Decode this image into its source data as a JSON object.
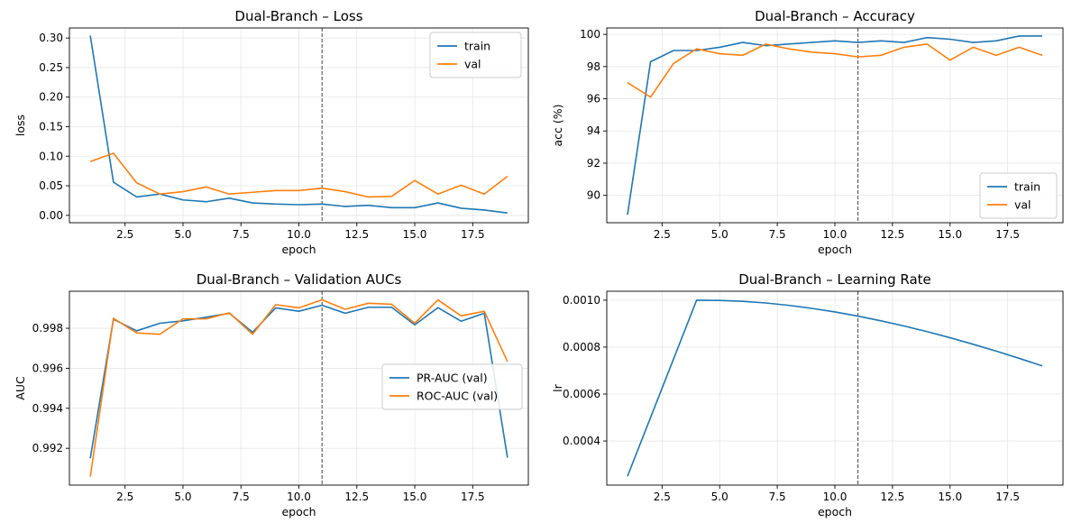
{
  "chart_data": [
    {
      "type": "line",
      "title": "Dual-Branch – Loss",
      "xlabel": "epoch",
      "ylabel": "loss",
      "xlim": [
        0.1,
        19.9
      ],
      "ylim": [
        -0.0125,
        0.317
      ],
      "xticks": [
        2.5,
        5.0,
        7.5,
        10.0,
        12.5,
        15.0,
        17.5
      ],
      "xtick_labels": [
        "2.5",
        "5.0",
        "7.5",
        "10.0",
        "12.5",
        "15.0",
        "17.5"
      ],
      "yticks": [
        0.0,
        0.05,
        0.1,
        0.15,
        0.2,
        0.25,
        0.3
      ],
      "ytick_labels": [
        "0.00",
        "0.05",
        "0.10",
        "0.15",
        "0.20",
        "0.25",
        "0.30"
      ],
      "grid": true,
      "legend": "upper-right",
      "vline": 11,
      "x": [
        1,
        2,
        3,
        4,
        5,
        6,
        7,
        8,
        9,
        10,
        11,
        12,
        13,
        14,
        15,
        16,
        17,
        18,
        19
      ],
      "series": [
        {
          "name": "train",
          "color": "#1f77b4",
          "values": [
            0.304,
            0.056,
            0.031,
            0.036,
            0.026,
            0.023,
            0.029,
            0.021,
            0.019,
            0.018,
            0.019,
            0.015,
            0.017,
            0.013,
            0.013,
            0.021,
            0.012,
            0.009,
            0.004
          ]
        },
        {
          "name": "val",
          "color": "#ff7f0e",
          "values": [
            0.091,
            0.105,
            0.055,
            0.036,
            0.04,
            0.048,
            0.036,
            0.039,
            0.042,
            0.042,
            0.046,
            0.04,
            0.031,
            0.032,
            0.059,
            0.036,
            0.051,
            0.036,
            0.066
          ]
        }
      ]
    },
    {
      "type": "line",
      "title": "Dual-Branch – Accuracy",
      "xlabel": "epoch",
      "ylabel": "acc (%)",
      "xlim": [
        0.1,
        19.9
      ],
      "ylim": [
        88.3,
        100.4
      ],
      "xticks": [
        2.5,
        5.0,
        7.5,
        10.0,
        12.5,
        15.0,
        17.5
      ],
      "xtick_labels": [
        "2.5",
        "5.0",
        "7.5",
        "10.0",
        "12.5",
        "15.0",
        "17.5"
      ],
      "yticks": [
        90,
        92,
        94,
        96,
        98,
        100
      ],
      "ytick_labels": [
        "90",
        "92",
        "94",
        "96",
        "98",
        "100"
      ],
      "grid": true,
      "legend": "lower-right",
      "vline": 11,
      "x": [
        1,
        2,
        3,
        4,
        5,
        6,
        7,
        8,
        9,
        10,
        11,
        12,
        13,
        14,
        15,
        16,
        17,
        18,
        19
      ],
      "series": [
        {
          "name": "train",
          "color": "#1f77b4",
          "values": [
            88.8,
            98.3,
            99.0,
            99.0,
            99.2,
            99.5,
            99.3,
            99.4,
            99.5,
            99.6,
            99.5,
            99.6,
            99.5,
            99.8,
            99.7,
            99.5,
            99.6,
            99.9,
            99.9
          ]
        },
        {
          "name": "val",
          "color": "#ff7f0e",
          "values": [
            97.0,
            96.1,
            98.2,
            99.1,
            98.8,
            98.7,
            99.4,
            99.1,
            98.9,
            98.8,
            98.6,
            98.7,
            99.2,
            99.4,
            98.4,
            99.2,
            98.7,
            99.2,
            98.7
          ]
        }
      ]
    },
    {
      "type": "line",
      "title": "Dual-Branch – Validation AUCs",
      "xlabel": "epoch",
      "ylabel": "AUC",
      "xlim": [
        0.1,
        19.9
      ],
      "ylim": [
        0.99016,
        0.99985
      ],
      "xticks": [
        2.5,
        5.0,
        7.5,
        10.0,
        12.5,
        15.0,
        17.5
      ],
      "xtick_labels": [
        "2.5",
        "5.0",
        "7.5",
        "10.0",
        "12.5",
        "15.0",
        "17.5"
      ],
      "yticks": [
        0.992,
        0.994,
        0.996,
        0.998
      ],
      "ytick_labels": [
        "0.992",
        "0.994",
        "0.996",
        "0.998"
      ],
      "grid": true,
      "legend": "center-right",
      "vline": 11,
      "x": [
        1,
        2,
        3,
        4,
        5,
        6,
        7,
        8,
        9,
        10,
        11,
        12,
        13,
        14,
        15,
        16,
        17,
        18,
        19
      ],
      "series": [
        {
          "name": "PR-AUC (val)",
          "color": "#1f77b4",
          "values": [
            0.9915,
            0.99845,
            0.99787,
            0.99825,
            0.99837,
            0.99855,
            0.99875,
            0.9978,
            0.99902,
            0.99885,
            0.99915,
            0.99875,
            0.99905,
            0.99905,
            0.99817,
            0.99903,
            0.99835,
            0.99875,
            0.99153
          ]
        },
        {
          "name": "ROC-AUC (val)",
          "color": "#ff7f0e",
          "values": [
            0.99058,
            0.9985,
            0.99777,
            0.9977,
            0.99847,
            0.99847,
            0.99877,
            0.9977,
            0.99918,
            0.99902,
            0.99942,
            0.99895,
            0.99925,
            0.9992,
            0.99825,
            0.99942,
            0.99862,
            0.99885,
            0.99633
          ]
        }
      ]
    },
    {
      "type": "line",
      "title": "Dual-Branch – Learning Rate",
      "xlabel": "epoch",
      "ylabel": "lr",
      "xlim": [
        0.1,
        19.9
      ],
      "ylim": [
        0.000212,
        0.001038
      ],
      "xticks": [
        2.5,
        5.0,
        7.5,
        10.0,
        12.5,
        15.0,
        17.5
      ],
      "xtick_labels": [
        "2.5",
        "5.0",
        "7.5",
        "10.0",
        "12.5",
        "15.0",
        "17.5"
      ],
      "yticks": [
        0.0004,
        0.0006,
        0.0008,
        0.001
      ],
      "ytick_labels": [
        "0.0004",
        "0.0006",
        "0.0008",
        "0.0010"
      ],
      "grid": true,
      "legend": "none",
      "vline": 11,
      "x": [
        1,
        2,
        3,
        4,
        5,
        6,
        7,
        8,
        9,
        10,
        11,
        12,
        13,
        14,
        15,
        16,
        17,
        18,
        19
      ],
      "series": [
        {
          "name": "",
          "color": "#1f77b4",
          "values": [
            0.00025,
            0.0005,
            0.00075,
            0.001,
            0.000999,
            0.000995,
            0.000988,
            0.000978,
            0.000965,
            0.00095,
            0.000932,
            0.000912,
            0.00089,
            0.000866,
            0.00084,
            0.000812,
            0.000783,
            0.000752,
            0.00072
          ]
        }
      ]
    }
  ]
}
